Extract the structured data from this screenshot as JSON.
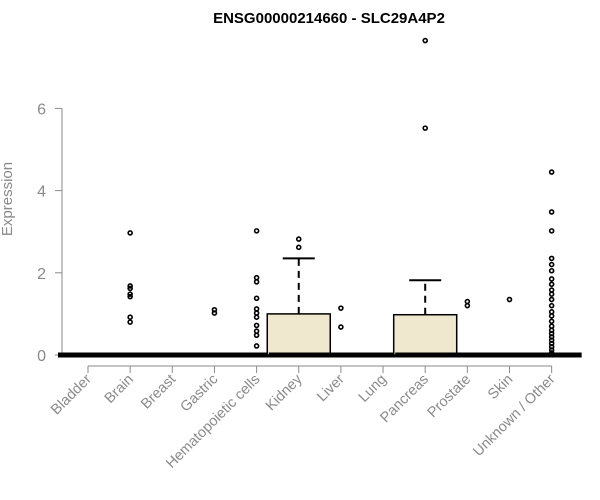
{
  "chart_data": {
    "type": "boxplot",
    "title": "ENSG00000214660 - SLC29A4P2",
    "xlabel": "",
    "ylabel": "Expression",
    "ylim": [
      0,
      7.6
    ],
    "yticks": [
      0,
      2,
      4,
      6
    ],
    "grid": false,
    "box_fill": "#efe8cf",
    "categories": [
      "Bladder",
      "Brain",
      "Breast",
      "Gastric",
      "Hematopoietic cells",
      "Kidney",
      "Liver",
      "Lung",
      "Pancreas",
      "Prostate",
      "Skin",
      "Unknown / Other"
    ],
    "boxes": [
      {
        "q1": 0,
        "median": 0,
        "q3": 0,
        "whisker_low": 0,
        "whisker_high": 0,
        "outliers": []
      },
      {
        "q1": 0,
        "median": 0,
        "q3": 0,
        "whisker_low": 0,
        "whisker_high": 0,
        "outliers": [
          0.8,
          0.92,
          1.42,
          1.48,
          1.62,
          1.68,
          2.97
        ]
      },
      {
        "q1": 0,
        "median": 0,
        "q3": 0,
        "whisker_low": 0,
        "whisker_high": 0,
        "outliers": []
      },
      {
        "q1": 0,
        "median": 0,
        "q3": 0,
        "whisker_low": 0,
        "whisker_high": 0,
        "outliers": [
          1.02,
          1.1
        ]
      },
      {
        "q1": 0,
        "median": 0,
        "q3": 0,
        "whisker_low": 0,
        "whisker_high": 0,
        "outliers": [
          0.22,
          0.48,
          0.58,
          0.72,
          0.92,
          1.02,
          1.12,
          1.38,
          1.78,
          1.88,
          3.02
        ]
      },
      {
        "q1": 0,
        "median": 0,
        "q3": 1.0,
        "whisker_low": 0,
        "whisker_high": 2.35,
        "outliers": [
          2.62,
          2.82
        ]
      },
      {
        "q1": 0,
        "median": 0,
        "q3": 0,
        "whisker_low": 0,
        "whisker_high": 0,
        "outliers": [
          0.68,
          1.14
        ]
      },
      {
        "q1": 0,
        "median": 0,
        "q3": 0,
        "whisker_low": 0,
        "whisker_high": 0,
        "outliers": []
      },
      {
        "q1": 0,
        "median": 0,
        "q3": 0.98,
        "whisker_low": 0,
        "whisker_high": 1.82,
        "outliers": [
          5.52,
          7.65
        ]
      },
      {
        "q1": 0,
        "median": 0,
        "q3": 0,
        "whisker_low": 0,
        "whisker_high": 0,
        "outliers": [
          1.2,
          1.3
        ]
      },
      {
        "q1": 0,
        "median": 0,
        "q3": 0,
        "whisker_low": 0,
        "whisker_high": 0,
        "outliers": [
          1.35
        ]
      },
      {
        "q1": 0,
        "median": 0,
        "q3": 0,
        "whisker_low": 0,
        "whisker_high": 0,
        "outliers": [
          0.05,
          0.12,
          0.2,
          0.28,
          0.36,
          0.44,
          0.52,
          0.6,
          0.7,
          0.82,
          0.95,
          1.05,
          1.2,
          1.35,
          1.48,
          1.58,
          1.72,
          1.85,
          2.05,
          2.2,
          2.35,
          3.02,
          3.48,
          4.45
        ]
      }
    ]
  }
}
